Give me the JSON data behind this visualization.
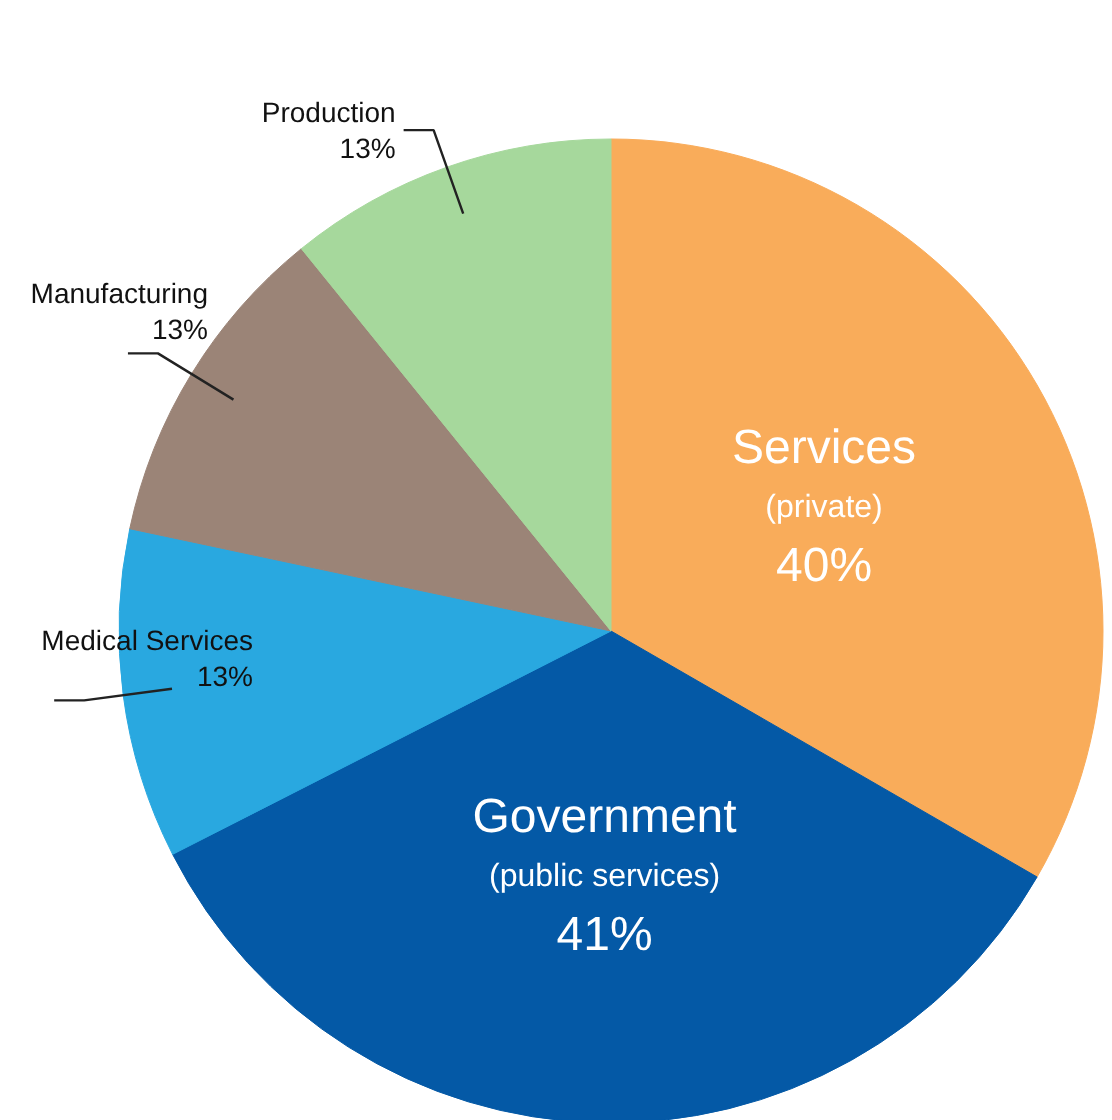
{
  "chart_data": {
    "type": "pie",
    "categories": [
      "Services\n(private)",
      "Government\n(public services)",
      "Medical Services",
      "Manufacturing",
      "Production"
    ],
    "values": [
      40,
      41,
      13,
      13,
      13
    ],
    "colors": [
      "#f9ac5a",
      "#0459a6",
      "#29a8e0",
      "#9b8477",
      "#a6d89c"
    ],
    "value_labels": [
      "40%",
      "41%",
      "13%",
      "13%",
      "13%"
    ]
  }
}
